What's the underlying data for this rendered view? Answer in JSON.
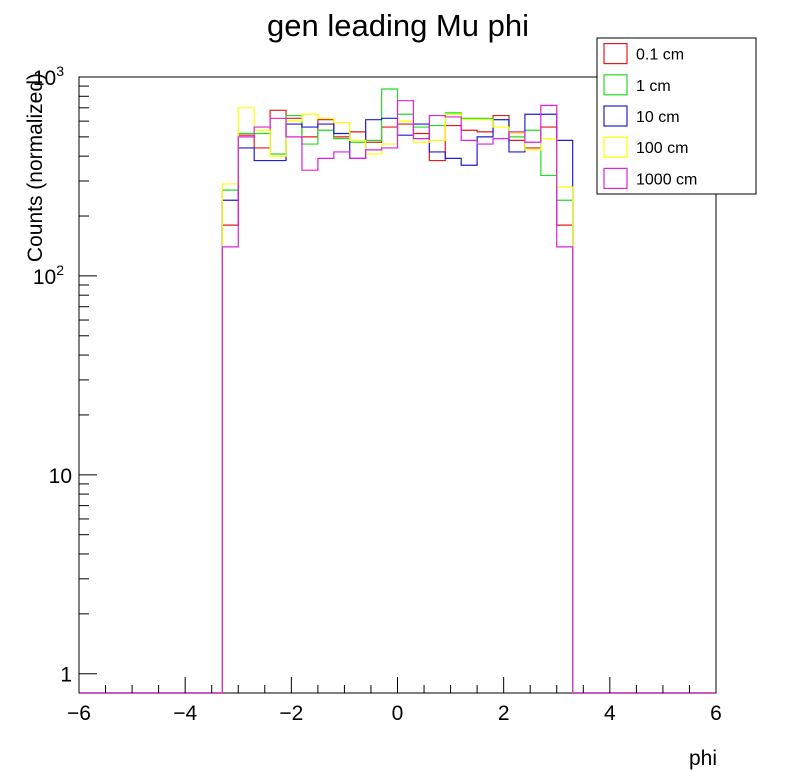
{
  "chart_data": {
    "type": "histogram",
    "title": "gen leading Mu phi",
    "xlabel": "phi",
    "ylabel": "Counts (normalized)",
    "xlim": [
      -6,
      6
    ],
    "ylim": [
      0.8,
      1000
    ],
    "yscale": "log",
    "grid": false,
    "legend_position": "top-right",
    "x_ticks": [
      {
        "value": -6,
        "label": "−6"
      },
      {
        "value": -4,
        "label": "−4"
      },
      {
        "value": -2,
        "label": "−2"
      },
      {
        "value": 0,
        "label": "0"
      },
      {
        "value": 2,
        "label": "2"
      },
      {
        "value": 4,
        "label": "4"
      },
      {
        "value": 6,
        "label": "6"
      }
    ],
    "y_ticks": [
      {
        "value": 1,
        "label": "1"
      },
      {
        "value": 10,
        "label": "10"
      },
      {
        "value": 100,
        "label": "10",
        "exp": "2"
      },
      {
        "value": 1000,
        "label": "10",
        "exp": "3"
      }
    ],
    "bin_edges": [
      -3.3,
      -3.0,
      -2.7,
      -2.4,
      -2.1,
      -1.8,
      -1.5,
      -1.2,
      -0.9,
      -0.6,
      -0.3,
      0.0,
      0.3,
      0.6,
      0.9,
      1.2,
      1.5,
      1.8,
      2.1,
      2.4,
      2.7,
      3.0,
      3.3
    ],
    "series": [
      {
        "name": "0.1 cm",
        "color": "#e41a1c",
        "values": [
          180,
          510,
          440,
          680,
          620,
          500,
          610,
          500,
          530,
          470,
          560,
          580,
          520,
          380,
          570,
          540,
          530,
          640,
          480,
          440,
          560,
          180
        ]
      },
      {
        "name": "1 cm",
        "color": "#22dd22",
        "values": [
          270,
          520,
          520,
          410,
          640,
          460,
          540,
          490,
          470,
          480,
          870,
          650,
          560,
          570,
          660,
          620,
          620,
          610,
          500,
          540,
          320,
          240
        ]
      },
      {
        "name": "10 cm",
        "color": "#1f1fd0",
        "values": [
          240,
          440,
          380,
          380,
          580,
          560,
          580,
          520,
          390,
          610,
          620,
          510,
          580,
          420,
          390,
          360,
          500,
          610,
          420,
          650,
          650,
          480
        ]
      },
      {
        "name": "100 cm",
        "color": "#ffff00",
        "values": [
          290,
          700,
          540,
          400,
          600,
          650,
          620,
          590,
          480,
          410,
          460,
          600,
          470,
          480,
          650,
          610,
          610,
          560,
          520,
          430,
          490,
          280
        ]
      },
      {
        "name": "1000 cm",
        "color": "#dd22dd",
        "values": [
          140,
          500,
          560,
          620,
          500,
          340,
          390,
          420,
          390,
          430,
          440,
          760,
          490,
          640,
          630,
          480,
          460,
          490,
          530,
          470,
          720,
          140
        ]
      }
    ]
  }
}
